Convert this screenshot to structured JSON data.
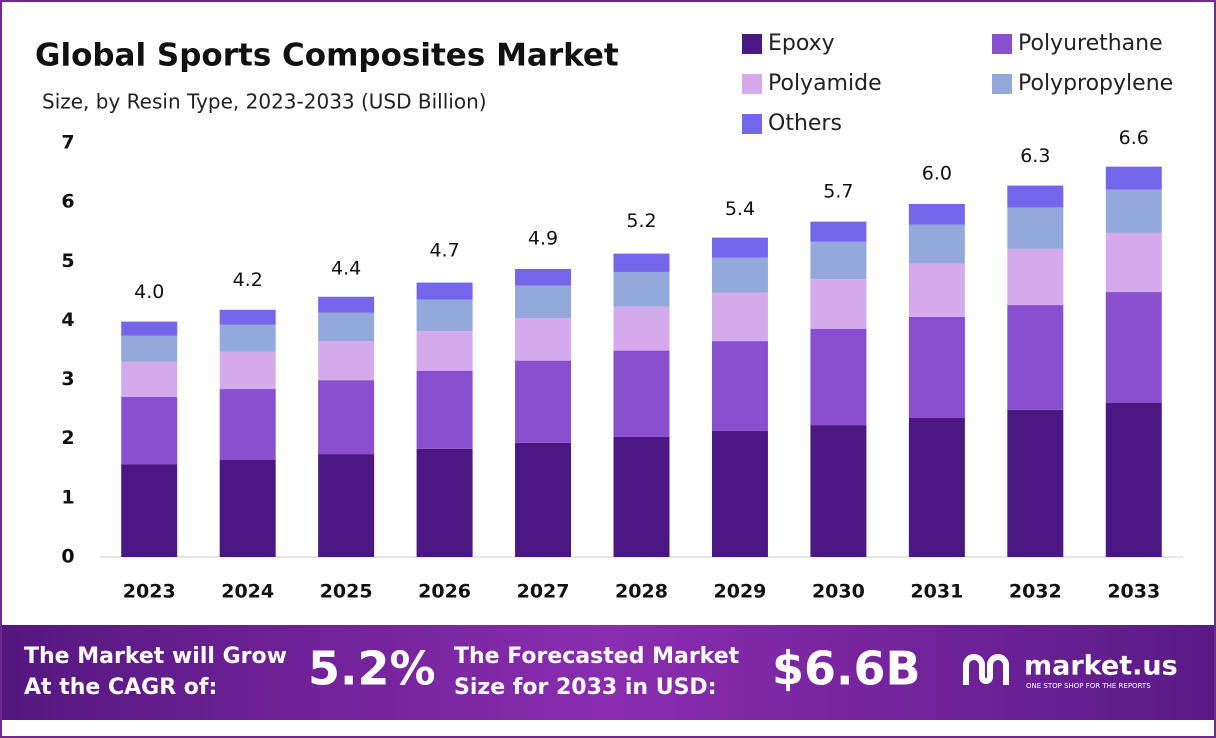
{
  "chart_data": {
    "type": "stacked-bar",
    "title": "Global Sports Composites  Market",
    "subtitle": "Size, by Resin Type, 2023-2033 (USD Billion)",
    "categories": [
      "2023",
      "2024",
      "2025",
      "2026",
      "2027",
      "2028",
      "2029",
      "2030",
      "2031",
      "2032",
      "2033"
    ],
    "series": [
      {
        "name": "Epoxy",
        "color": "#4b1883",
        "values": [
          1.57,
          1.64,
          1.74,
          1.83,
          1.93,
          2.03,
          2.13,
          2.23,
          2.35,
          2.49,
          2.61
        ]
      },
      {
        "name": "Polyurethane",
        "color": "#8a4fcf",
        "values": [
          1.14,
          1.2,
          1.25,
          1.32,
          1.39,
          1.46,
          1.52,
          1.63,
          1.71,
          1.77,
          1.87
        ]
      },
      {
        "name": "Polyamide",
        "color": "#d4aaec",
        "values": [
          0.59,
          0.63,
          0.66,
          0.67,
          0.72,
          0.74,
          0.82,
          0.84,
          0.9,
          0.95,
          1.0
        ]
      },
      {
        "name": "Polypropylene",
        "color": "#93a8db",
        "values": [
          0.44,
          0.46,
          0.48,
          0.53,
          0.55,
          0.59,
          0.59,
          0.63,
          0.66,
          0.7,
          0.73
        ]
      },
      {
        "name": "Others",
        "color": "#7565ea",
        "values": [
          0.24,
          0.25,
          0.27,
          0.29,
          0.28,
          0.31,
          0.34,
          0.34,
          0.35,
          0.37,
          0.39
        ]
      }
    ],
    "totals": [
      4,
      4.2,
      4.4,
      4.7,
      4.9,
      5.2,
      5.4,
      5.7,
      6,
      6.3,
      6.6
    ],
    "totals_labels": [
      "4.0",
      "4.2",
      "4.4",
      "4.7",
      "4.9",
      "5.2",
      "5.4",
      "5.7",
      "6.0",
      "6.3",
      "6.6"
    ],
    "ylim": [
      0,
      7
    ],
    "yticks": [
      0,
      1,
      2,
      3,
      4,
      5,
      6,
      7
    ]
  },
  "footer": {
    "cagr_text_1": "The Market will Grow",
    "cagr_text_2": "At the CAGR of:",
    "cagr": "5.2%",
    "forecast_text_1": "The Forecasted Market",
    "forecast_text_2": "Size for 2033 in USD:",
    "forecast": "$6.6B",
    "brand": "market.us",
    "tagline": "ONE STOP SHOP FOR THE REPORTS"
  }
}
